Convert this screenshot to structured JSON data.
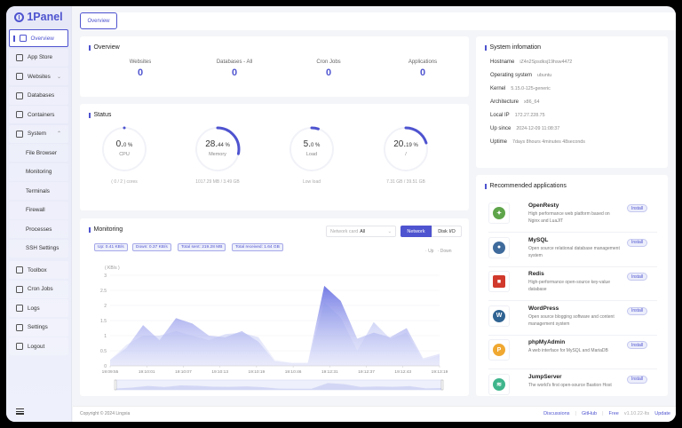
{
  "app": {
    "name": "1Panel"
  },
  "sidebar": {
    "items": [
      {
        "label": "Overview",
        "icon": "home-icon",
        "active": true
      },
      {
        "label": "App Store",
        "icon": "grid-icon"
      },
      {
        "label": "Websites",
        "icon": "globe-icon",
        "chevron": "⌄"
      },
      {
        "label": "Databases",
        "icon": "database-icon"
      },
      {
        "label": "Containers",
        "icon": "container-icon"
      },
      {
        "label": "System",
        "icon": "server-icon",
        "chevron": "⌃"
      },
      {
        "label": "File Browser",
        "sub": true
      },
      {
        "label": "Monitoring",
        "sub": true
      },
      {
        "label": "Terminals",
        "sub": true
      },
      {
        "label": "Firewall",
        "sub": true
      },
      {
        "label": "Processes",
        "sub": true
      },
      {
        "label": "SSH Settings",
        "sub": true
      },
      {
        "label": "Toolbox",
        "icon": "toolbox-icon"
      },
      {
        "label": "Cron Jobs",
        "icon": "calendar-icon"
      },
      {
        "label": "Logs",
        "icon": "logs-icon"
      },
      {
        "label": "Settings",
        "icon": "gear-icon"
      },
      {
        "label": "Logout",
        "icon": "logout-icon"
      }
    ]
  },
  "tabs": [
    {
      "label": "Overview"
    }
  ],
  "overview": {
    "title": "Overview",
    "stats": [
      {
        "label": "Websites",
        "value": "0"
      },
      {
        "label": "Databases - All",
        "value": "0"
      },
      {
        "label": "Cron Jobs",
        "value": "0"
      },
      {
        "label": "Applications",
        "value": "0"
      }
    ]
  },
  "status": {
    "title": "Status",
    "gauges": [
      {
        "int": "0.",
        "dec": "0 %",
        "label": "CPU",
        "sub": "( 0 / 2 ) cores",
        "percent": 0
      },
      {
        "int": "28.",
        "dec": "44 %",
        "label": "Memory",
        "sub": "1017.29 MB / 3.49 GB",
        "percent": 28.44
      },
      {
        "int": "5.",
        "dec": "0 %",
        "label": "Load",
        "sub": "Low load",
        "percent": 5
      },
      {
        "int": "20.",
        "dec": "19 %",
        "label": "/",
        "sub": "7.31 GB / 39.51 GB",
        "percent": 20.19
      }
    ]
  },
  "monitoring": {
    "title": "Monitoring",
    "network_card_label": "Network card",
    "network_card_value": "All",
    "btn_network": "Network",
    "btn_disk": "Disk I/O",
    "chips": [
      "Up: 0.41 KB/s",
      "Down: 0.37 KB/s",
      "Total sent: 219.28 MB",
      "Total received: 1.64 GB"
    ],
    "legend_up": "Up",
    "legend_down": "Down",
    "unit": "( KB/s )"
  },
  "chart_data": {
    "type": "area",
    "title": "Monitoring",
    "ylabel": "( KB/s )",
    "ylim": [
      0,
      3
    ],
    "yticks": [
      0,
      0.5,
      1,
      1.5,
      2,
      2.5,
      3
    ],
    "xticks": [
      "19:09:55",
      "19:10:01",
      "19:10:07",
      "19:10:13",
      "19:10:19",
      "19:10:46",
      "19:12:31",
      "19:12:37",
      "19:12:43",
      "19:13:19"
    ],
    "x": [
      "19:09:55",
      "19:09:58",
      "19:10:01",
      "19:10:04",
      "19:10:07",
      "19:10:10",
      "19:10:13",
      "19:10:16",
      "19:10:19",
      "19:10:22",
      "19:10:25",
      "19:10:46",
      "19:10:49",
      "19:12:31",
      "19:12:34",
      "19:12:37",
      "19:12:40",
      "19:12:43",
      "19:12:46",
      "19:13:19",
      "19:13:22"
    ],
    "series": [
      {
        "name": "Up",
        "values": [
          0.2,
          0.6,
          1.35,
          0.85,
          1.58,
          1.4,
          1.0,
          0.95,
          1.15,
          0.8,
          0.15,
          0.1,
          0.1,
          2.65,
          2.15,
          0.9,
          1.1,
          0.95,
          1.25,
          0.25,
          0.4
        ]
      },
      {
        "name": "Down",
        "values": [
          0.2,
          0.7,
          1.0,
          1.0,
          1.15,
          1.0,
          0.85,
          1.05,
          1.1,
          0.95,
          0.2,
          0.1,
          0.1,
          2.1,
          1.6,
          0.5,
          1.45,
          0.9,
          1.1,
          0.2,
          0.35
        ]
      }
    ],
    "legend_position": "top-right",
    "grid": true
  },
  "sysinfo": {
    "title": "System infomation",
    "rows": [
      {
        "label": "Hostname",
        "value": "iZ4n2Spsdksj19hsw4472"
      },
      {
        "label": "Operating system",
        "value": "ubuntu"
      },
      {
        "label": "Kernel",
        "value": "5.15.0-125-generic"
      },
      {
        "label": "Architecture",
        "value": "x86_64"
      },
      {
        "label": "Local IP",
        "value": "172.27.228.75"
      },
      {
        "label": "Up since",
        "value": "2024-12-09 11:08:37"
      },
      {
        "label": "Uptime",
        "value": "7days 8hours 4minutes 48seconds"
      }
    ]
  },
  "recommended": {
    "title": "Recommended applications",
    "install_label": "Install",
    "apps": [
      {
        "name": "OpenResty",
        "desc": "High performance web platform based on Nginx and LuaJIT",
        "color": "#5ea44a"
      },
      {
        "name": "MySQL",
        "desc": "Open source relational database management system",
        "color": "#3f6b9c"
      },
      {
        "name": "Redis",
        "desc": "High-performance open-source key-value database",
        "color": "#d0392b"
      },
      {
        "name": "WordPress",
        "desc": "Open source blogging software and content management system",
        "color": "#2f6392"
      },
      {
        "name": "phpMyAdmin",
        "desc": "A web interface for MySQL and MariaDB",
        "color": "#f0a830"
      },
      {
        "name": "JumpServer",
        "desc": "The world's first open-source Bastion Host",
        "color": "#3fb58c"
      }
    ]
  },
  "footer": {
    "copyright": "Copyright © 2024 Lingxia",
    "links": [
      "Discussions",
      "GitHub"
    ],
    "edition": "Free",
    "version": "v1.10.22-lts",
    "update": "Update"
  },
  "colors": {
    "accent": "#4e53cf"
  }
}
